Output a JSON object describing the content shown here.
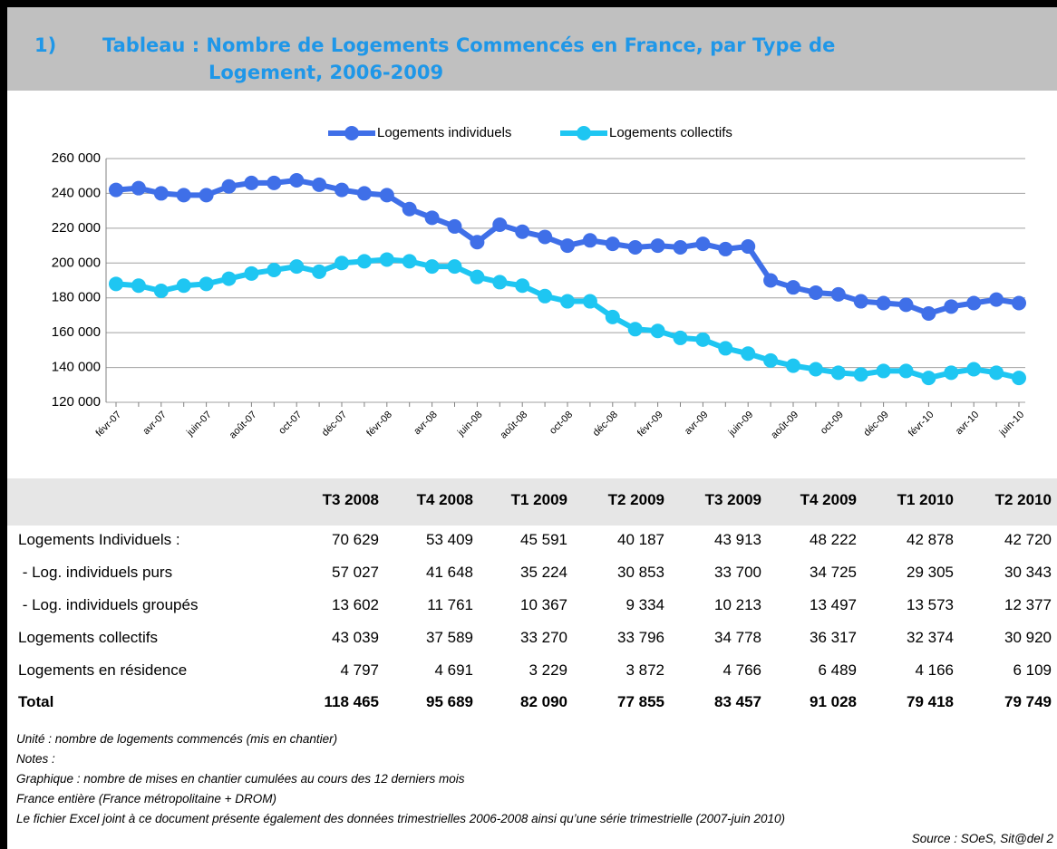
{
  "header": {
    "number": "1)",
    "title_line1": "Tableau : Nombre de Logements Commencés en France, par Type de",
    "title_line2": "Logement, 2006-2009"
  },
  "chart_data": {
    "type": "line",
    "categories": [
      "févr-07",
      null,
      "avr-07",
      null,
      "juin-07",
      null,
      "août-07",
      null,
      "oct-07",
      null,
      "déc-07",
      null,
      "févr-08",
      null,
      "avr-08",
      null,
      "juin-08",
      null,
      "août-08",
      null,
      "oct-08",
      null,
      "déc-08",
      null,
      "févr-09",
      null,
      "avr-09",
      null,
      "juin-09",
      null,
      "août-09",
      null,
      "oct-09",
      null,
      "déc-09",
      null,
      "févr-10",
      null,
      "avr-10",
      null,
      "juin-10"
    ],
    "series": [
      {
        "name": "Logements individuels",
        "color": "#3f6fe8",
        "values": [
          242000,
          243000,
          240000,
          239000,
          239000,
          244000,
          246000,
          246000,
          247500,
          245000,
          242000,
          240000,
          239000,
          231000,
          226000,
          221000,
          212000,
          222000,
          218000,
          215000,
          210000,
          213000,
          211000,
          209000,
          210000,
          209000,
          211000,
          208000,
          209500,
          190000,
          186000,
          183000,
          182000,
          178000,
          177000,
          176000,
          171000,
          175000,
          177000,
          179000,
          177000
        ]
      },
      {
        "name": "Logements collectifs",
        "color": "#1ec6f2",
        "values": [
          188000,
          187000,
          184000,
          187000,
          188000,
          191000,
          194000,
          196000,
          198000,
          195000,
          200000,
          201000,
          202000,
          201000,
          198000,
          198000,
          192000,
          189000,
          187000,
          181000,
          178000,
          178000,
          169000,
          162000,
          161000,
          157000,
          156000,
          151000,
          148000,
          144000,
          141000,
          139000,
          137000,
          136000,
          138000,
          138000,
          134000,
          137000,
          139000,
          137000,
          134000
        ]
      }
    ],
    "ylim": [
      120000,
      260000
    ],
    "yticks": [
      {
        "value": 120000,
        "label": "120 000"
      },
      {
        "value": 140000,
        "label": "140 000"
      },
      {
        "value": 160000,
        "label": "160 000"
      },
      {
        "value": 180000,
        "label": "180 000"
      },
      {
        "value": 200000,
        "label": "200 000"
      },
      {
        "value": 220000,
        "label": "220 000"
      },
      {
        "value": 240000,
        "label": "240 000"
      },
      {
        "value": 260000,
        "label": "260 000"
      }
    ],
    "grid": true,
    "legend": "top"
  },
  "table": {
    "header": [
      "T3 2008",
      "T4 2008",
      "T1 2009",
      "T2 2009",
      "T3 2009",
      "T4 2009",
      "T1 2010",
      "T2 2010"
    ],
    "rows": [
      [
        "Logements Individuels :",
        "70 629",
        "53 409",
        "45 591",
        "40 187",
        "43 913",
        "48 222",
        "42 878",
        "42 720"
      ],
      [
        " - Log. individuels purs",
        "57 027",
        "41 648",
        "35 224",
        "30 853",
        "33 700",
        "34 725",
        "29 305",
        "30 343"
      ],
      [
        " - Log. individuels groupés",
        "13 602",
        "11 761",
        "10 367",
        "9 334",
        "10 213",
        "13 497",
        "13 573",
        "12 377"
      ],
      [
        "Logements collectifs",
        "43 039",
        "37 589",
        "33 270",
        "33 796",
        "34 778",
        "36 317",
        "32 374",
        "30 920"
      ],
      [
        "Logements en résidence",
        "4 797",
        "4 691",
        "3 229",
        "3 872",
        "4 766",
        "6 489",
        "4 166",
        "6 109"
      ],
      [
        "Total",
        "118 465",
        "95 689",
        "82 090",
        "77 855",
        "83 457",
        "91 028",
        "79 418",
        "79 749"
      ]
    ]
  },
  "notes": [
    "Unité : nombre de logements commencés (mis en chantier)",
    "Notes :",
    "Graphique : nombre de mises en chantier cumulées au cours des 12 derniers mois",
    "France entière (France métropolitaine + DROM)",
    "Le fichier Excel joint à ce document présente également des données trimestrielles 2006-2008 ainsi qu’une série trimestrielle (2007-juin 2010)"
  ],
  "source": "Source : SOeS, Sit@del 2"
}
